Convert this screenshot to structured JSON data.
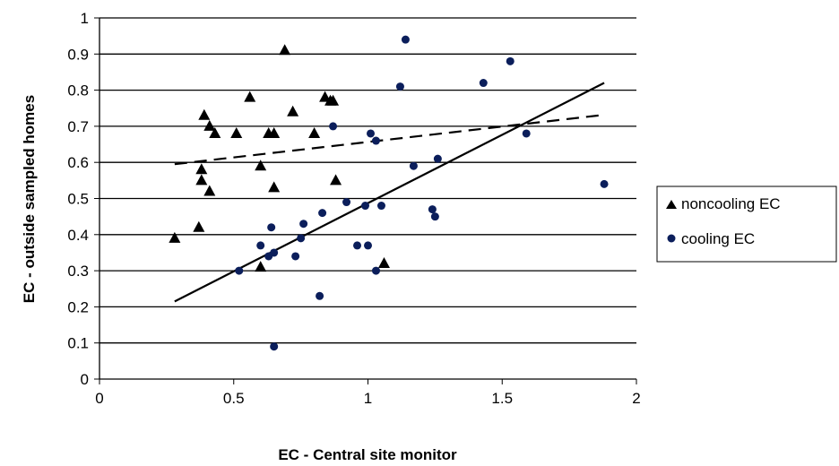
{
  "chart_data": {
    "type": "scatter",
    "title": "",
    "xlabel": "EC - Central site monitor",
    "ylabel": "EC - outside sampled homes",
    "xlim": [
      0,
      2
    ],
    "ylim": [
      0,
      1
    ],
    "xticks": [
      0,
      0.5,
      1,
      1.5,
      2
    ],
    "xtick_labels": [
      "0",
      "0.5",
      "1",
      "1.5",
      "2"
    ],
    "yticks": [
      0,
      0.1,
      0.2,
      0.3,
      0.4,
      0.5,
      0.6,
      0.7,
      0.8,
      0.9,
      1
    ],
    "ytick_labels": [
      "0",
      "0.1",
      "0.2",
      "0.3",
      "0.4",
      "0.5",
      "0.6",
      "0.7",
      "0.8",
      "0.9",
      "1"
    ],
    "grid": "horizontal",
    "legend_position": "right",
    "series": [
      {
        "name": "noncooling EC",
        "marker": "triangle",
        "color": "#000000",
        "x": [
          0.28,
          0.37,
          0.38,
          0.38,
          0.39,
          0.41,
          0.41,
          0.43,
          0.51,
          0.56,
          0.6,
          0.6,
          0.63,
          0.65,
          0.65,
          0.69,
          0.72,
          0.8,
          0.84,
          0.86,
          0.87,
          0.88,
          1.06
        ],
        "y": [
          0.39,
          0.42,
          0.58,
          0.55,
          0.73,
          0.7,
          0.52,
          0.68,
          0.68,
          0.78,
          0.59,
          0.31,
          0.68,
          0.68,
          0.53,
          0.91,
          0.74,
          0.68,
          0.78,
          0.77,
          0.77,
          0.55,
          0.32
        ]
      },
      {
        "name": "cooling EC",
        "marker": "circle",
        "color": "#0b1e5b",
        "x": [
          0.52,
          0.6,
          0.63,
          0.64,
          0.65,
          0.65,
          0.73,
          0.75,
          0.76,
          0.82,
          0.83,
          0.87,
          0.92,
          0.96,
          0.99,
          1.0,
          1.01,
          1.03,
          1.03,
          1.05,
          1.12,
          1.14,
          1.17,
          1.24,
          1.25,
          1.26,
          1.43,
          1.53,
          1.59,
          1.88
        ],
        "y": [
          0.3,
          0.37,
          0.34,
          0.42,
          0.35,
          0.09,
          0.34,
          0.39,
          0.43,
          0.23,
          0.46,
          0.7,
          0.49,
          0.37,
          0.48,
          0.37,
          0.68,
          0.3,
          0.66,
          0.48,
          0.81,
          0.94,
          0.59,
          0.47,
          0.45,
          0.61,
          0.82,
          0.88,
          0.68,
          0.54
        ]
      }
    ],
    "trendlines": [
      {
        "series": "noncooling EC",
        "style": "dashed",
        "x": [
          0.28,
          1.86
        ],
        "y": [
          0.595,
          0.73
        ]
      },
      {
        "series": "cooling EC",
        "style": "solid",
        "x": [
          0.28,
          1.88
        ],
        "y": [
          0.215,
          0.82
        ]
      }
    ]
  }
}
